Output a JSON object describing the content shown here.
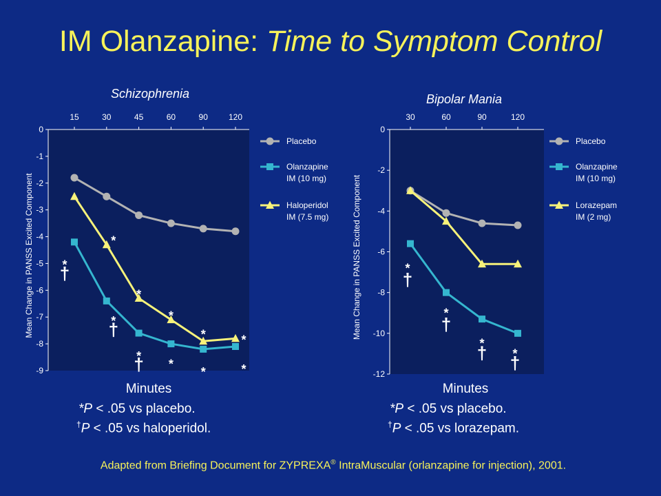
{
  "title": {
    "normal": "IM Olanzapine: ",
    "italic": "Time to Symptom Control"
  },
  "footnotes": {
    "p_label": "P",
    "placebo_mark": "*",
    "placebo_text": " < .05 vs placebo.",
    "dagger_mark": "†"
  },
  "source": {
    "before": "Adapted from Briefing Document for ZYPREXA",
    "reg": "®",
    "after": " IntraMuscular (orlanzapine for injection), 2001."
  },
  "colors": {
    "background": "#0d2a85",
    "title": "#f7f25a",
    "placebo": "#b3b3b3",
    "olanzapine": "#35b6cf",
    "comparator": "#f7f27a",
    "plot_bg": "#0b1f5e"
  },
  "chart_data": [
    {
      "id": "schizophrenia",
      "type": "line",
      "title": "Schizophrenia",
      "xlabel": "Minutes",
      "ylabel": "Mean Change in PANSS Excited Component",
      "x_axis_position": "top",
      "categories": [
        "15",
        "30",
        "45",
        "60",
        "90",
        "120"
      ],
      "ylim": [
        -9,
        0
      ],
      "yticks": [
        "0",
        "-1",
        "-2",
        "-3",
        "-4",
        "-5",
        "-6",
        "-7",
        "-8",
        "-9"
      ],
      "grid": false,
      "legend_position": "right",
      "series": [
        {
          "name": "Placebo",
          "label_lines": [
            "Placebo"
          ],
          "color_key": "placebo",
          "marker": "circle",
          "values": [
            -1.8,
            -2.5,
            -3.2,
            -3.5,
            -3.7,
            -3.8
          ]
        },
        {
          "name": "Olanzapine IM (10 mg)",
          "label_lines": [
            "Olanzapine",
            "IM (10 mg)"
          ],
          "color_key": "olanzapine",
          "marker": "square",
          "values": [
            -4.2,
            -6.4,
            -7.6,
            -8.0,
            -8.2,
            -8.1
          ]
        },
        {
          "name": "Haloperidol IM (7.5 mg)",
          "label_lines": [
            "Haloperidol",
            "IM (7.5 mg)"
          ],
          "color_key": "comparator",
          "marker": "triangle",
          "values": [
            -2.5,
            -4.3,
            -6.3,
            -7.1,
            -7.9,
            -7.8
          ]
        }
      ],
      "annotations": [
        {
          "text": "*",
          "category": 0,
          "y": -4.9
        },
        {
          "text": "†",
          "category": 0,
          "y": -5.4
        },
        {
          "text": "*",
          "category": 1,
          "y": -4.0
        },
        {
          "text": "*",
          "category": 1,
          "y": -7.0
        },
        {
          "text": "†",
          "category": 1,
          "y": -7.5
        },
        {
          "text": "*",
          "category": 2,
          "y": -6.0
        },
        {
          "text": "*",
          "category": 2,
          "y": -8.3
        },
        {
          "text": "†",
          "category": 2,
          "y": -8.8
        },
        {
          "text": "*",
          "category": 3,
          "y": -6.8
        },
        {
          "text": "*",
          "category": 3,
          "y": -8.6
        },
        {
          "text": "*",
          "category": 4,
          "y": -7.5
        },
        {
          "text": "*",
          "category": 4,
          "y": -8.9
        },
        {
          "text": "*",
          "category": 5,
          "y": -7.7
        },
        {
          "text": "*",
          "category": 5,
          "y": -8.8
        }
      ],
      "footnote_comparator": " < .05 vs haloperidol."
    },
    {
      "id": "bipolar",
      "type": "line",
      "title": "Bipolar Mania",
      "xlabel": "Minutes",
      "ylabel": "Mean Change in PANSS Excited Component",
      "x_axis_position": "top",
      "categories": [
        "30",
        "60",
        "90",
        "120"
      ],
      "ylim": [
        -12,
        0
      ],
      "yticks": [
        "0",
        "-2",
        "-4",
        "-6",
        "-8",
        "-10",
        "-12"
      ],
      "grid": false,
      "legend_position": "right",
      "series": [
        {
          "name": "Placebo",
          "label_lines": [
            "Placebo"
          ],
          "color_key": "placebo",
          "marker": "circle",
          "values": [
            -3.0,
            -4.1,
            -4.6,
            -4.7
          ]
        },
        {
          "name": "Olanzapine IM (10 mg)",
          "label_lines": [
            "Olanzapine",
            "IM (10 mg)"
          ],
          "color_key": "olanzapine",
          "marker": "square",
          "values": [
            -5.6,
            -8.0,
            -9.3,
            -10.0
          ]
        },
        {
          "name": "Lorazepam IM (2 mg)",
          "label_lines": [
            "Lorazepam",
            "IM (2 mg)"
          ],
          "color_key": "comparator",
          "marker": "triangle",
          "values": [
            -3.0,
            -4.5,
            -6.6,
            -6.6
          ]
        }
      ],
      "annotations": [
        {
          "text": "*",
          "category": 0,
          "y": -6.6
        },
        {
          "text": "†",
          "category": 0,
          "y": -7.4
        },
        {
          "text": "*",
          "category": 1,
          "y": -8.8
        },
        {
          "text": "†",
          "category": 1,
          "y": -9.6
        },
        {
          "text": "*",
          "category": 2,
          "y": -10.3
        },
        {
          "text": "†",
          "category": 2,
          "y": -11.0
        },
        {
          "text": "*",
          "category": 3,
          "y": -10.8
        },
        {
          "text": "†",
          "category": 3,
          "y": -11.5
        }
      ],
      "footnote_comparator": " < .05 vs lorazepam."
    }
  ]
}
